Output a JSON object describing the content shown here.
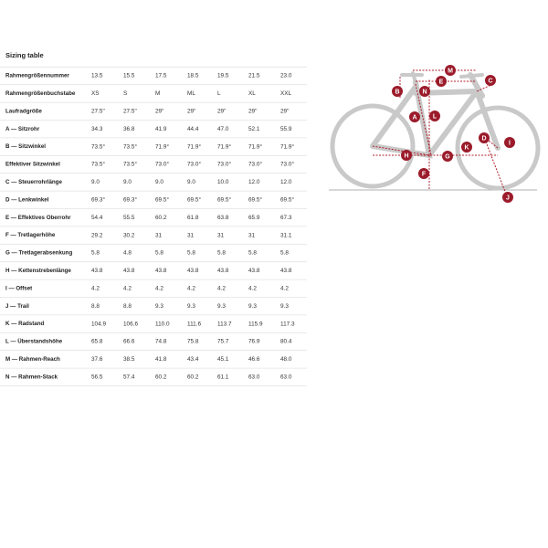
{
  "table": {
    "title": "Sizing table",
    "rows": [
      {
        "label": "Rahmengrößennummer",
        "values": [
          "13.5",
          "15.5",
          "17.5",
          "18.5",
          "19.5",
          "21.5",
          "23.0"
        ]
      },
      {
        "label": "Rahmengrößenbuchstabe",
        "values": [
          "XS",
          "S",
          "M",
          "ML",
          "L",
          "XL",
          "XXL"
        ]
      },
      {
        "label": "Laufradgröße",
        "values": [
          "27.5\"",
          "27.5\"",
          "29\"",
          "29\"",
          "29\"",
          "29\"",
          "29\""
        ]
      },
      {
        "label": "A — Sitzrohr",
        "values": [
          "34.3",
          "36.8",
          "41.9",
          "44.4",
          "47.0",
          "52.1",
          "55.9"
        ]
      },
      {
        "label": "B — Sitzwinkel",
        "values": [
          "73.5°",
          "73.5°",
          "71.9°",
          "71.9°",
          "71.9°",
          "71.9°",
          "71.9°"
        ]
      },
      {
        "label": "Effektiver Sitzwinkel",
        "values": [
          "73.5°",
          "73.5°",
          "73.0°",
          "73.0°",
          "73.0°",
          "73.0°",
          "73.0°"
        ]
      },
      {
        "label": "C — Steuerrohrlänge",
        "values": [
          "9.0",
          "9.0",
          "9.0",
          "9.0",
          "10.0",
          "12.0",
          "12.0"
        ]
      },
      {
        "label": "D — Lenkwinkel",
        "values": [
          "69.3°",
          "69.3°",
          "69.5°",
          "69.5°",
          "69.5°",
          "69.5°",
          "69.5°"
        ]
      },
      {
        "label": "E — Effektives Oberrohr",
        "values": [
          "54.4",
          "55.5",
          "60.2",
          "61.8",
          "63.8",
          "65.9",
          "67.3"
        ]
      },
      {
        "label": "F — Tretlagerhöhe",
        "values": [
          "29.2",
          "30.2",
          "31",
          "31",
          "31",
          "31",
          "31.1"
        ]
      },
      {
        "label": "G — Tretlagerabsenkung",
        "values": [
          "5.8",
          "4.8",
          "5.8",
          "5.8",
          "5.8",
          "5.8",
          "5.8"
        ]
      },
      {
        "label": "H — Kettenstrebenlänge",
        "values": [
          "43.8",
          "43.8",
          "43.8",
          "43.8",
          "43.8",
          "43.8",
          "43.8"
        ]
      },
      {
        "label": "I — Offset",
        "values": [
          "4.2",
          "4.2",
          "4.2",
          "4.2",
          "4.2",
          "4.2",
          "4.2"
        ]
      },
      {
        "label": "J — Trail",
        "values": [
          "8.8",
          "8.8",
          "9.3",
          "9.3",
          "9.3",
          "9.3",
          "9.3"
        ]
      },
      {
        "label": "K — Radstand",
        "values": [
          "104.9",
          "106.6",
          "110.0",
          "111.6",
          "113.7",
          "115.9",
          "117.3"
        ]
      },
      {
        "label": "L — Überstandshöhe",
        "values": [
          "65.8",
          "66.6",
          "74.8",
          "75.8",
          "75.7",
          "76.9",
          "80.4"
        ]
      },
      {
        "label": "M — Rahmen-Reach",
        "values": [
          "37.6",
          "38.5",
          "41.8",
          "43.4",
          "45.1",
          "46.6",
          "48.0"
        ]
      },
      {
        "label": "N — Rahmen-Stack",
        "values": [
          "56.5",
          "57.4",
          "60.2",
          "60.2",
          "61.1",
          "63.0",
          "63.0"
        ]
      }
    ]
  },
  "diagram": {
    "labels": [
      "M",
      "E",
      "C",
      "B",
      "N",
      "A",
      "L",
      "D",
      "I",
      "K",
      "H",
      "G",
      "F",
      "J"
    ]
  }
}
